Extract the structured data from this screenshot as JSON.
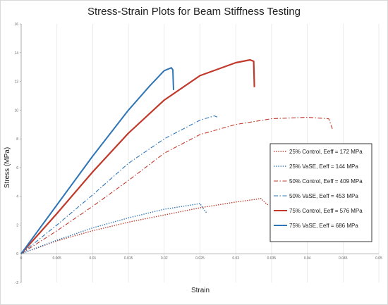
{
  "chart_data": {
    "type": "line",
    "title": "Stress-Strain Plots for Beam Stiffness Testing",
    "xlabel": "Strain",
    "ylabel": "Stress (MPa)",
    "xlim": [
      0,
      0.05
    ],
    "ylim": [
      -2,
      16
    ],
    "x_ticks": [
      "0",
      "0.005",
      "0.01",
      "0.015",
      "0.02",
      "0.025",
      "0.03",
      "0.035",
      "0.04",
      "0.045",
      "0.05"
    ],
    "y_ticks": [
      "-2",
      "0",
      "2",
      "4",
      "6",
      "8",
      "10",
      "12",
      "14",
      "16"
    ],
    "grid": "vertical",
    "legend_position": "right",
    "series": [
      {
        "name": "25% Control, Eeff = 172 MPa",
        "color": "#c0392b",
        "style": "dotted",
        "width": 1.4,
        "points": [
          [
            0,
            0
          ],
          [
            0.005,
            0.9
          ],
          [
            0.01,
            1.6
          ],
          [
            0.015,
            2.2
          ],
          [
            0.02,
            2.7
          ],
          [
            0.025,
            3.2
          ],
          [
            0.03,
            3.6
          ],
          [
            0.033,
            3.8
          ],
          [
            0.0335,
            3.85
          ],
          [
            0.034,
            3.6
          ],
          [
            0.0345,
            3.4
          ]
        ]
      },
      {
        "name": "25% VaSE, Eeff = 144 MPa",
        "color": "#2e75b6",
        "style": "dotted",
        "width": 1.4,
        "points": [
          [
            0,
            0
          ],
          [
            0.005,
            0.95
          ],
          [
            0.01,
            1.8
          ],
          [
            0.015,
            2.5
          ],
          [
            0.02,
            3.1
          ],
          [
            0.0245,
            3.45
          ],
          [
            0.025,
            3.5
          ],
          [
            0.0255,
            3.1
          ],
          [
            0.026,
            2.8
          ]
        ]
      },
      {
        "name": "50% Control, Eeff = 409 MPa",
        "color": "#c0392b",
        "style": "dashdot",
        "width": 1.1,
        "points": [
          [
            0,
            0
          ],
          [
            0.005,
            1.6
          ],
          [
            0.01,
            3.3
          ],
          [
            0.015,
            5.1
          ],
          [
            0.02,
            7.0
          ],
          [
            0.025,
            8.3
          ],
          [
            0.03,
            9.0
          ],
          [
            0.035,
            9.4
          ],
          [
            0.04,
            9.5
          ],
          [
            0.043,
            9.4
          ],
          [
            0.0435,
            8.7
          ]
        ]
      },
      {
        "name": "50% VaSE, Eeff = 453 MPa",
        "color": "#2e75b6",
        "style": "dashdot",
        "width": 1.1,
        "points": [
          [
            0,
            0
          ],
          [
            0.005,
            2.0
          ],
          [
            0.01,
            4.1
          ],
          [
            0.015,
            6.3
          ],
          [
            0.02,
            8.0
          ],
          [
            0.025,
            9.3
          ],
          [
            0.027,
            9.6
          ],
          [
            0.0275,
            9.5
          ]
        ]
      },
      {
        "name": "75% Control, Eeff = 576 MPa",
        "color": "#c0392b",
        "style": "solid",
        "width": 2.2,
        "points": [
          [
            0,
            0
          ],
          [
            0.005,
            2.8
          ],
          [
            0.01,
            5.7
          ],
          [
            0.015,
            8.4
          ],
          [
            0.02,
            10.7
          ],
          [
            0.025,
            12.4
          ],
          [
            0.03,
            13.3
          ],
          [
            0.032,
            13.5
          ],
          [
            0.0325,
            13.4
          ],
          [
            0.0326,
            11.6
          ]
        ]
      },
      {
        "name": "75% VaSE, Eeff = 686 MPa",
        "color": "#2e75b6",
        "style": "solid",
        "width": 2.0,
        "points": [
          [
            0,
            0
          ],
          [
            0.005,
            3.4
          ],
          [
            0.01,
            6.8
          ],
          [
            0.015,
            10.0
          ],
          [
            0.018,
            11.7
          ],
          [
            0.02,
            12.75
          ],
          [
            0.021,
            12.95
          ],
          [
            0.0212,
            12.8
          ],
          [
            0.0213,
            11.4
          ]
        ]
      }
    ]
  }
}
